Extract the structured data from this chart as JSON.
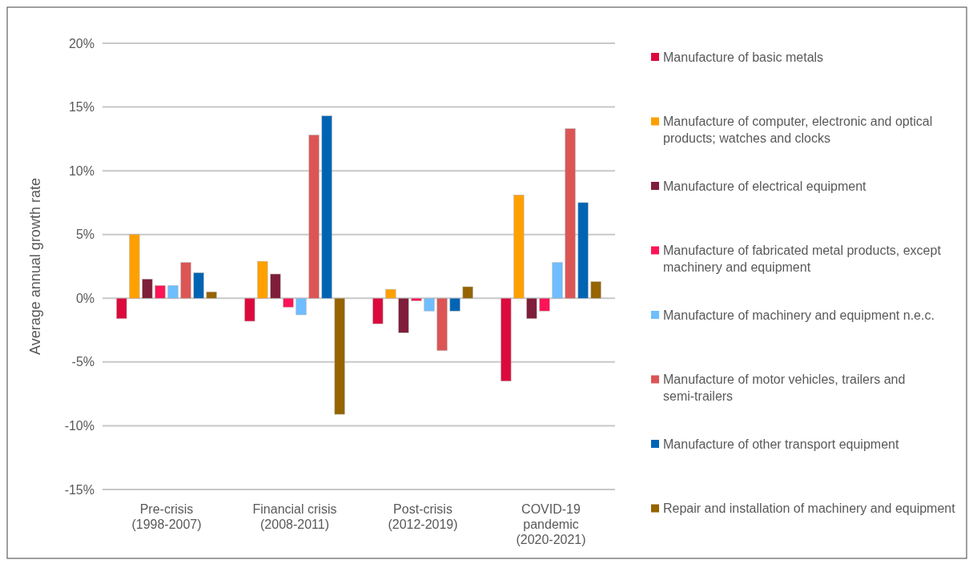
{
  "chart_data": {
    "type": "bar",
    "ylabel": "Average annual growth rate",
    "categories": [
      "Pre-crisis\n(1998-2007)",
      "Financial crisis\n(2008-2011)",
      "Post-crisis\n(2012-2019)",
      "COVID-19\npandemic\n(2020-2021)"
    ],
    "series": [
      {
        "name": "Manufacture of basic metals",
        "color": "#dc0a3c",
        "values": [
          -1.6,
          -1.8,
          -2.0,
          -6.5
        ]
      },
      {
        "name": "Manufacture of computer, electronic and optical products; watches and clocks",
        "color": "#ffa000",
        "values": [
          5.0,
          2.9,
          0.7,
          8.1
        ]
      },
      {
        "name": "Manufacture of electrical equipment",
        "color": "#7f1e3a",
        "values": [
          1.5,
          1.9,
          -2.7,
          -1.6
        ]
      },
      {
        "name": "Manufacture of fabricated metal products, except machinery and equipment",
        "color": "#ff1455",
        "values": [
          1.0,
          -0.7,
          -0.2,
          -1.0
        ]
      },
      {
        "name": "Manufacture of machinery and equipment n.e.c.",
        "color": "#6ebeff",
        "values": [
          1.0,
          -1.3,
          -1.0,
          2.8
        ]
      },
      {
        "name": "Manufacture of motor vehicles, trailers and semi-trailers",
        "color": "#dc5555",
        "values": [
          2.8,
          12.8,
          -4.1,
          13.3
        ]
      },
      {
        "name": "Manufacture of other transport equipment",
        "color": "#0064b4",
        "values": [
          2.0,
          14.3,
          -1.0,
          7.5
        ]
      },
      {
        "name": "Repair and installation of machinery and equipment",
        "color": "#966400",
        "values": [
          0.5,
          -9.1,
          0.9,
          1.3
        ]
      }
    ],
    "ylim": [
      -15,
      20
    ],
    "yticks": [
      {
        "value": -15,
        "label": "-15%"
      },
      {
        "value": -10,
        "label": "-10%"
      },
      {
        "value": -5,
        "label": "-5%"
      },
      {
        "value": 0,
        "label": "0%"
      },
      {
        "value": 5,
        "label": "5%"
      },
      {
        "value": 10,
        "label": "10%"
      },
      {
        "value": 15,
        "label": "15%"
      },
      {
        "value": 20,
        "label": "20%"
      }
    ],
    "grid": "y",
    "legend": "right"
  }
}
